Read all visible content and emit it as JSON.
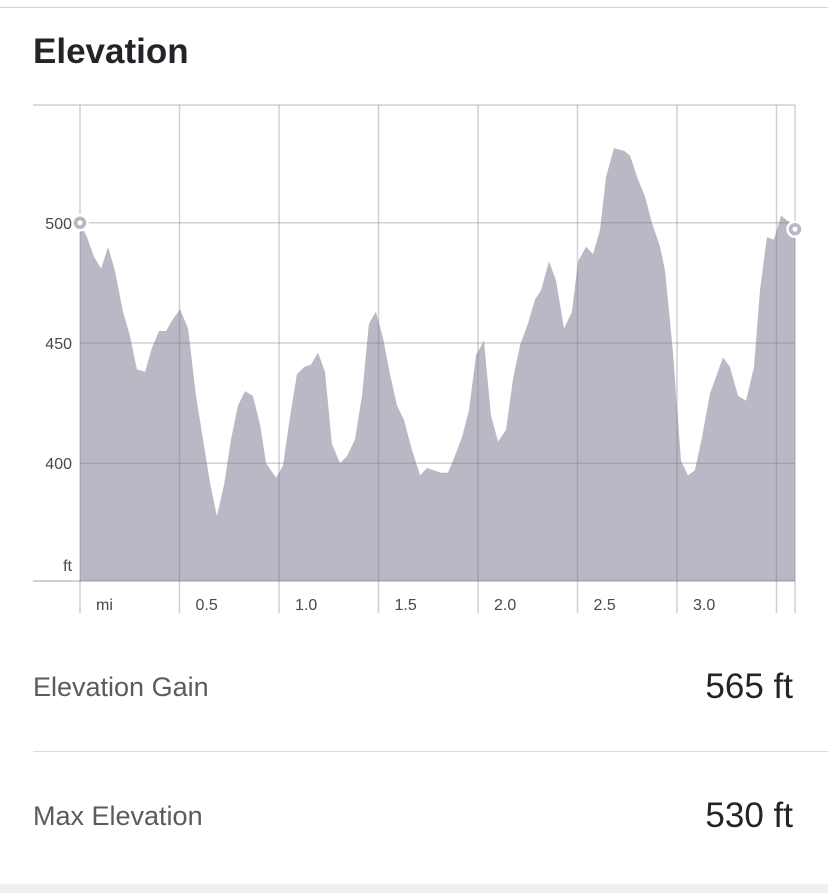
{
  "title": "Elevation",
  "chart_data": {
    "type": "area",
    "xlabel": "mi",
    "ylabel": "ft",
    "xlim": [
      0,
      3.593
    ],
    "ylim": [
      351,
      549
    ],
    "x_ticks": [
      0,
      0.5,
      1.0,
      1.5,
      2.0,
      2.5,
      3.0,
      3.5
    ],
    "x_tick_labels": [
      "mi",
      "0.5",
      "1.0",
      "1.5",
      "2.0",
      "2.5",
      "3.0",
      ""
    ],
    "y_ticks": [
      400,
      450,
      500
    ],
    "y_tick_labels": [
      "400",
      "450",
      "500"
    ],
    "grid": true,
    "color": "#b9b9c6",
    "points": [
      [
        0,
        500
      ],
      [
        0.035,
        494
      ],
      [
        0.07,
        486
      ],
      [
        0.106,
        481
      ],
      [
        0.141,
        490
      ],
      [
        0.176,
        480
      ],
      [
        0.216,
        463
      ],
      [
        0.251,
        453
      ],
      [
        0.286,
        439
      ],
      [
        0.327,
        438
      ],
      [
        0.362,
        448
      ],
      [
        0.397,
        455
      ],
      [
        0.432,
        455
      ],
      [
        0.467,
        460
      ],
      [
        0.503,
        464
      ],
      [
        0.543,
        456
      ],
      [
        0.583,
        428
      ],
      [
        0.618,
        410
      ],
      [
        0.653,
        392
      ],
      [
        0.688,
        378
      ],
      [
        0.724,
        391
      ],
      [
        0.759,
        410
      ],
      [
        0.794,
        424
      ],
      [
        0.829,
        430
      ],
      [
        0.869,
        428
      ],
      [
        0.905,
        416
      ],
      [
        0.935,
        400
      ],
      [
        0.985,
        394
      ],
      [
        1.02,
        399
      ],
      [
        1.055,
        419
      ],
      [
        1.09,
        437
      ],
      [
        1.126,
        440
      ],
      [
        1.161,
        441
      ],
      [
        1.196,
        446
      ],
      [
        1.231,
        438
      ],
      [
        1.266,
        408
      ],
      [
        1.307,
        400
      ],
      [
        1.342,
        403
      ],
      [
        1.382,
        410
      ],
      [
        1.417,
        428
      ],
      [
        1.452,
        458
      ],
      [
        1.487,
        463
      ],
      [
        1.523,
        452
      ],
      [
        1.558,
        437
      ],
      [
        1.593,
        424
      ],
      [
        1.628,
        418
      ],
      [
        1.663,
        407
      ],
      [
        1.709,
        395
      ],
      [
        1.744,
        398
      ],
      [
        1.779,
        397
      ],
      [
        1.814,
        396
      ],
      [
        1.849,
        396
      ],
      [
        1.884,
        403
      ],
      [
        1.92,
        411
      ],
      [
        1.955,
        422
      ],
      [
        1.99,
        445
      ],
      [
        2.03,
        451
      ],
      [
        2.065,
        420
      ],
      [
        2.101,
        409
      ],
      [
        2.141,
        414
      ],
      [
        2.176,
        435
      ],
      [
        2.211,
        449
      ],
      [
        2.251,
        458
      ],
      [
        2.286,
        468
      ],
      [
        2.317,
        472
      ],
      [
        2.357,
        484
      ],
      [
        2.392,
        476
      ],
      [
        2.432,
        456
      ],
      [
        2.472,
        463
      ],
      [
        2.503,
        484
      ],
      [
        2.543,
        490
      ],
      [
        2.578,
        487
      ],
      [
        2.613,
        497
      ],
      [
        2.643,
        519
      ],
      [
        2.683,
        531
      ],
      [
        2.734,
        530
      ],
      [
        2.764,
        528
      ],
      [
        2.804,
        518
      ],
      [
        2.839,
        511
      ],
      [
        2.874,
        500
      ],
      [
        2.915,
        490
      ],
      [
        2.94,
        480
      ],
      [
        2.98,
        446
      ],
      [
        3.02,
        401
      ],
      [
        3.055,
        395
      ],
      [
        3.09,
        397
      ],
      [
        3.126,
        411
      ],
      [
        3.166,
        429
      ],
      [
        3.231,
        444
      ],
      [
        3.266,
        440
      ],
      [
        3.307,
        428
      ],
      [
        3.347,
        426
      ],
      [
        3.387,
        440
      ],
      [
        3.417,
        472
      ],
      [
        3.452,
        494
      ],
      [
        3.487,
        493
      ],
      [
        3.523,
        503
      ],
      [
        3.553,
        501
      ],
      [
        3.593,
        499
      ]
    ]
  },
  "stats": [
    {
      "label": "Elevation Gain",
      "value": "565 ft"
    },
    {
      "label": "Max Elevation",
      "value": "530 ft"
    }
  ]
}
